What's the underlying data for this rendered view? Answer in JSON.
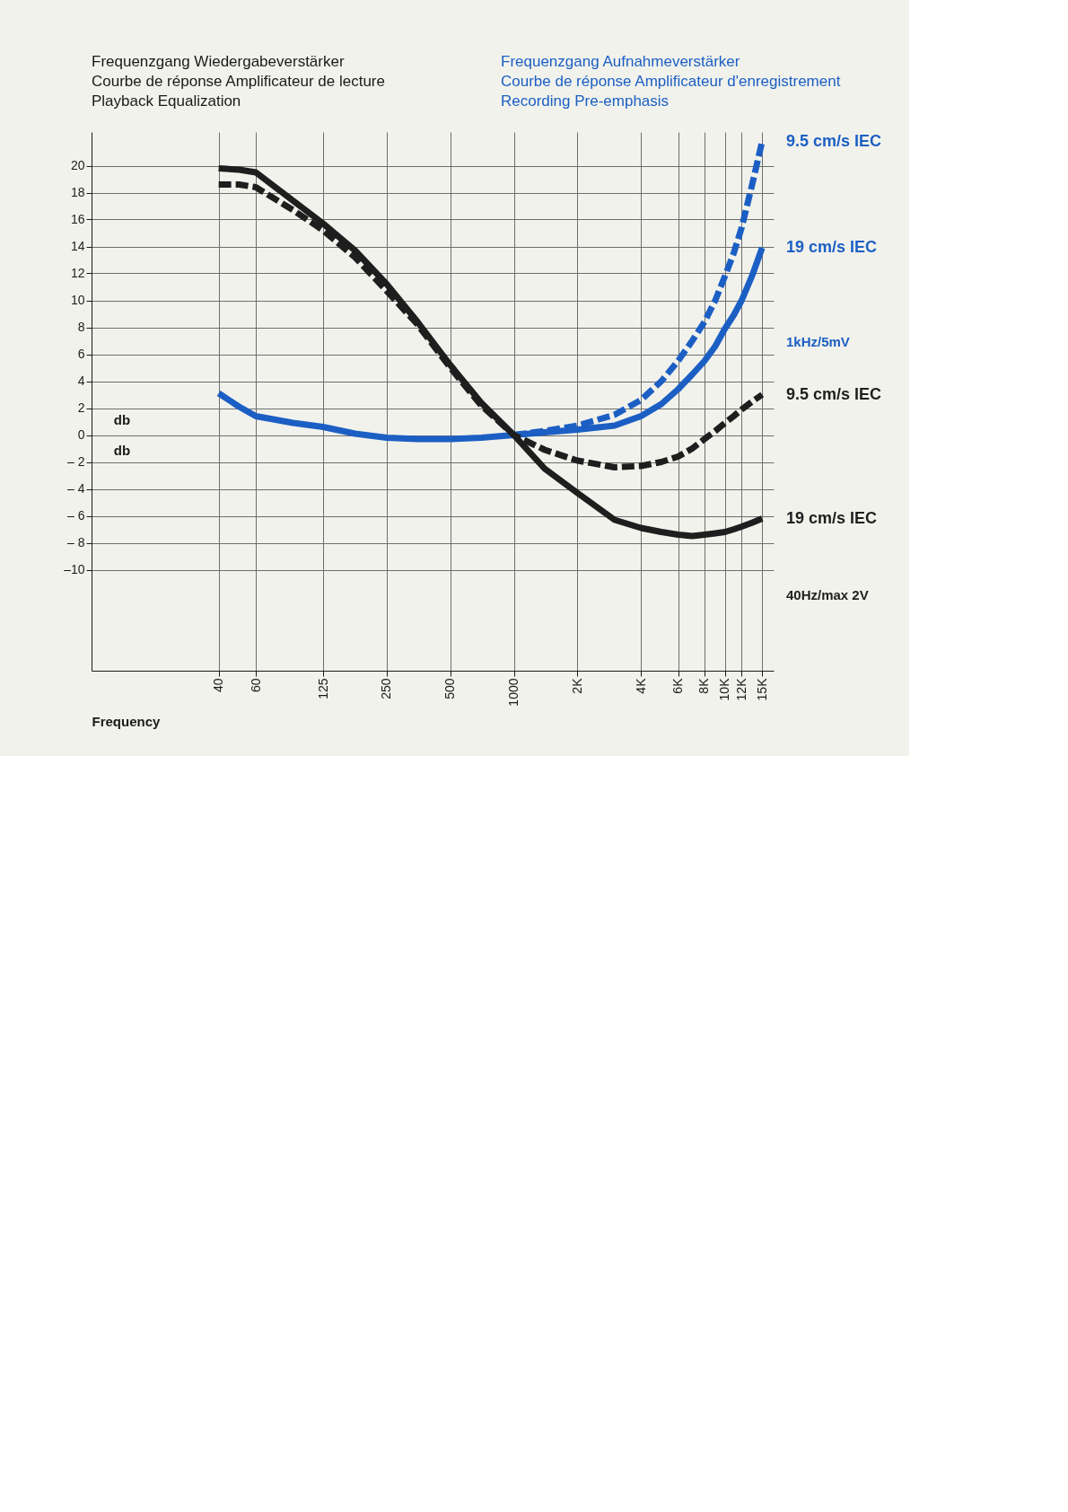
{
  "chart_data": {
    "type": "line",
    "title": "Frequenzgang Wiedergabeverstärker\nCourbe de réponse Amplificateur de lecture\nPlayback Equalization",
    "subtitle": "Frequenzgang Aufnahmeverstärker\nCourbe de réponse Amplificateur d'enregistrement\nRecording Pre-emphasis",
    "xlabel": "Frequency",
    "ylabel": "db",
    "annotations": [
      "1kHz/5mV",
      "40Hz/max 2V"
    ],
    "log": "x",
    "grid": true,
    "legend": false,
    "xlim": [
      10,
      17000
    ],
    "xticks": [
      40,
      60,
      125,
      250,
      500,
      1000,
      {
        "value": 2000,
        "label": "2K"
      },
      {
        "value": 4000,
        "label": "4K"
      },
      {
        "value": 6000,
        "label": "6K"
      },
      {
        "value": 8000,
        "label": "8K"
      },
      {
        "value": 10000,
        "label": "10K"
      },
      {
        "value": 12000,
        "label": "12K"
      },
      {
        "value": 15000,
        "label": "15K"
      }
    ],
    "ylim": [
      -17.5,
      22.5
    ],
    "yticks": [
      {
        "value": -10,
        "label": "–10"
      },
      {
        "value": -8,
        "label": "– 8"
      },
      {
        "value": -6,
        "label": "– 6"
      },
      {
        "value": -4,
        "label": "– 4"
      },
      {
        "value": -2,
        "label": "– 2"
      },
      0,
      2,
      4,
      6,
      8,
      10,
      12,
      14,
      16,
      18,
      20
    ],
    "series": [
      {
        "name": "9.5 cm/s IEC",
        "color": "#1c5fc4",
        "line_style": "dashed",
        "x": [
          1000,
          1400,
          2000,
          3000,
          4000,
          5000,
          6000,
          7000,
          8000,
          9000,
          10000,
          11000,
          12000,
          13500,
          15000
        ],
        "values": [
          0,
          0.3,
          0.7,
          1.5,
          2.6,
          4.0,
          5.5,
          7.0,
          8.4,
          10.0,
          11.8,
          13.5,
          15.4,
          18.7,
          21.8
        ]
      },
      {
        "name": "19 cm/s IEC",
        "color": "#1c5fc4",
        "line_style": "solid",
        "x": [
          40,
          50,
          60,
          90,
          125,
          177,
          250,
          350,
          500,
          700,
          1000,
          1400,
          2000,
          3000,
          4000,
          5000,
          6000,
          7000,
          8000,
          9000,
          10000,
          11000,
          12000,
          13500,
          15000
        ],
        "values": [
          3.1,
          2.1,
          1.4,
          0.9,
          0.6,
          0.1,
          -0.2,
          -0.3,
          -0.3,
          -0.2,
          0,
          0.2,
          0.4,
          0.7,
          1.4,
          2.3,
          3.4,
          4.5,
          5.5,
          6.6,
          7.9,
          8.9,
          10.0,
          11.9,
          13.9
        ]
      },
      {
        "name": "9.5 cm/s IEC",
        "color": "#1e1e1e",
        "line_style": "dashed",
        "x": [
          40,
          50,
          60,
          90,
          125,
          177,
          250,
          350,
          500,
          700,
          1000,
          1400,
          2000,
          3000,
          4000,
          5000,
          6000,
          7000,
          8000,
          9000,
          10000,
          11000,
          12000,
          13500,
          15000
        ],
        "values": [
          18.6,
          18.6,
          18.4,
          16.7,
          15.2,
          13.2,
          10.7,
          8.2,
          5.0,
          2.2,
          0,
          -1.1,
          -1.9,
          -2.4,
          -2.3,
          -2.0,
          -1.6,
          -1.0,
          -0.3,
          0.3,
          0.9,
          1.4,
          1.9,
          2.5,
          3.0
        ]
      },
      {
        "name": "19 cm/s IEC",
        "color": "#1e1e1e",
        "line_style": "solid",
        "x": [
          40,
          50,
          60,
          90,
          125,
          177,
          250,
          350,
          500,
          700,
          1000,
          1400,
          2000,
          3000,
          4000,
          5000,
          6000,
          7000,
          8000,
          9000,
          10000,
          11000,
          12000,
          13500,
          15000
        ],
        "values": [
          19.8,
          19.7,
          19.5,
          17.4,
          15.7,
          13.7,
          11.2,
          8.4,
          5.2,
          2.4,
          0,
          -2.5,
          -4.3,
          -6.3,
          -6.9,
          -7.2,
          -7.4,
          -7.5,
          -7.4,
          -7.3,
          -7.2,
          -7.0,
          -6.8,
          -6.5,
          -6.2
        ]
      }
    ]
  }
}
